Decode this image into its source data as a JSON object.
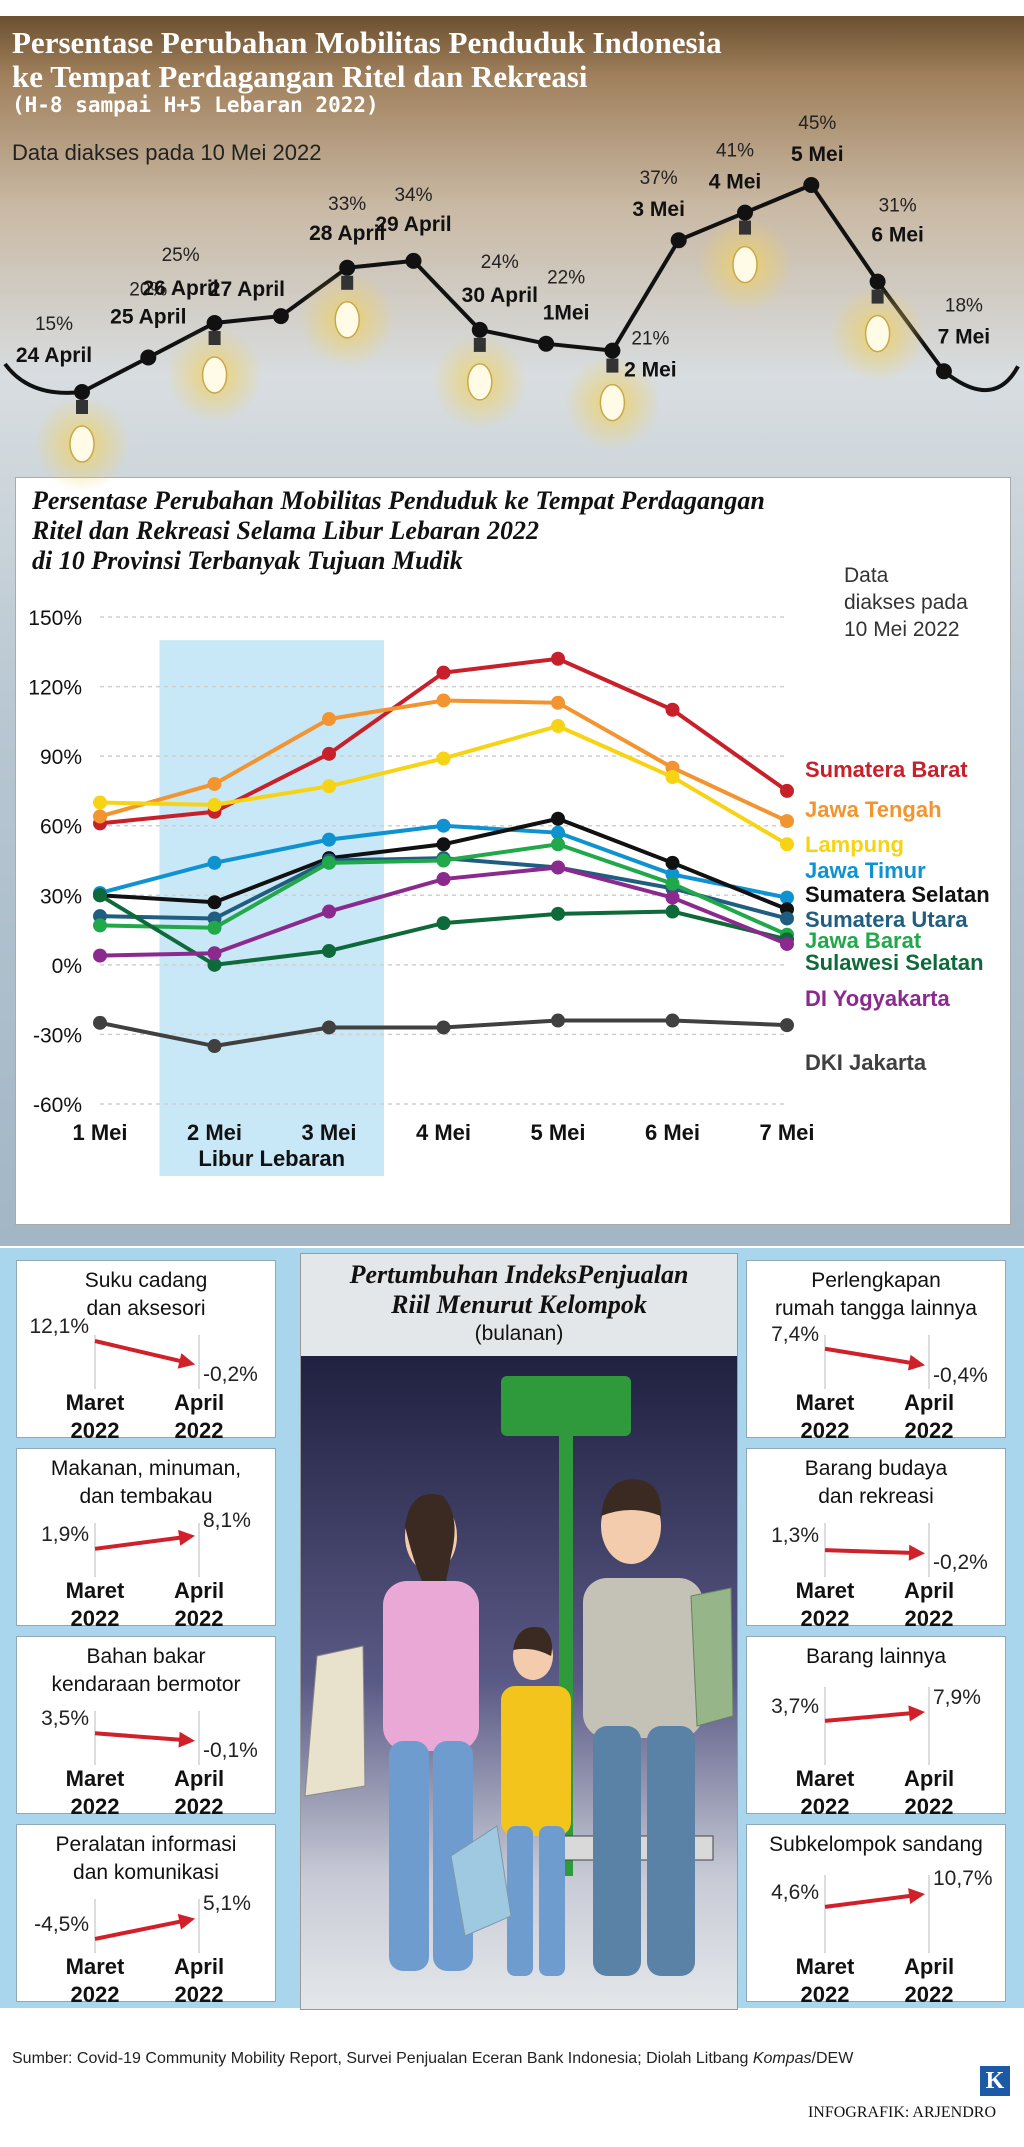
{
  "header": {
    "title_line1": "Persentase Perubahan Mobilitas Penduduk Indonesia",
    "title_line2": "ke Tempat Perdagangan Ritel dan Rekreasi",
    "subtitle": "(H-8 sampai H+5 Lebaran 2022)",
    "accessed": "Data diakses pada 10 Mei 2022"
  },
  "line_panel": {
    "title_line1": "Persentase Perubahan Mobilitas Penduduk ke Tempat Perdagangan",
    "title_line2": "Ritel dan Rekreasi Selama Libur Lebaran 2022",
    "title_line3": "di 10 Provinsi Terbanyak Tujuan Mudik",
    "note_line1": "Data",
    "note_line2": "diakses pada",
    "note_line3": "10 Mei 2022",
    "highlight_label": "Libur Lebaran"
  },
  "chart_data": [
    {
      "type": "line",
      "x": [
        "24 April",
        "25 April",
        "26 April",
        "27 April",
        "28 April",
        "29 April",
        "30 April",
        "1Mei",
        "2 Mei",
        "3 Mei",
        "4 Mei",
        "5 Mei",
        "6 Mei",
        "7 Mei"
      ],
      "values": [
        15,
        20,
        25,
        26,
        33,
        34,
        24,
        22,
        21,
        37,
        41,
        45,
        31,
        18
      ],
      "value_labels": [
        "15%",
        "20%",
        "25%",
        "",
        "33%",
        "34%",
        "24%",
        "22%",
        "21%",
        "37%",
        "41%",
        "45%",
        "31%",
        "18%"
      ],
      "labeled_dates": [
        "24 April",
        "25 April",
        "26 April",
        "27 April",
        "28 April",
        "29 April",
        "30 April",
        "1Mei",
        "2 Mei",
        "3 Mei",
        "4 Mei",
        "5 Mei",
        "6 Mei",
        "7 Mei"
      ],
      "bulb_color": "#f0d060"
    },
    {
      "type": "line",
      "categories": [
        "1 Mei",
        "2 Mei",
        "3 Mei",
        "4 Mei",
        "5 Mei",
        "6 Mei",
        "7 Mei"
      ],
      "ylim": [
        -60,
        150
      ],
      "yticks": [
        150,
        120,
        90,
        60,
        30,
        0,
        -30,
        -60
      ],
      "ytick_labels": [
        "150%",
        "120%",
        "90%",
        "60%",
        "30%",
        "0%",
        "-30%",
        "-60%"
      ],
      "highlight_range": [
        "2 Mei",
        "3 Mei"
      ],
      "series": [
        {
          "name": "Sumatera Barat",
          "color": "#c8202a",
          "values": [
            61,
            66,
            91,
            126,
            132,
            110,
            75
          ]
        },
        {
          "name": "Jawa Tengah",
          "color": "#f29430",
          "values": [
            64,
            78,
            106,
            114,
            113,
            85,
            62
          ]
        },
        {
          "name": "Lampung",
          "color": "#f7d315",
          "values": [
            70,
            69,
            77,
            89,
            103,
            81,
            52
          ]
        },
        {
          "name": "Jawa Timur",
          "color": "#0f92d0",
          "values": [
            31,
            44,
            54,
            60,
            57,
            39,
            29
          ]
        },
        {
          "name": "Sumatera Selatan",
          "color": "#111111",
          "values": [
            30,
            27,
            46,
            52,
            63,
            44,
            24
          ]
        },
        {
          "name": "Sumatera Utara",
          "color": "#1f5e80",
          "values": [
            21,
            20,
            45,
            46,
            42,
            33,
            20
          ]
        },
        {
          "name": "Jawa Barat",
          "color": "#20a84a",
          "values": [
            17,
            16,
            44,
            45,
            52,
            35,
            13
          ]
        },
        {
          "name": "Sulawesi Selatan",
          "color": "#0e6a3a",
          "values": [
            30,
            0,
            6,
            18,
            22,
            23,
            11
          ]
        },
        {
          "name": "DI Yogyakarta",
          "color": "#8a2a8e",
          "values": [
            4,
            5,
            23,
            37,
            42,
            29,
            9
          ]
        },
        {
          "name": "DKI Jakarta",
          "color": "#404040",
          "values": [
            -25,
            -35,
            -27,
            -27,
            -24,
            -24,
            -26
          ]
        }
      ]
    }
  ],
  "sales": {
    "title_line1": "Pertumbuhan IndeksPenjualan",
    "title_line2": "Riil Menurut Kelompok",
    "subtitle": "(bulanan)",
    "month_a": "Maret",
    "month_b": "April",
    "year": "2022",
    "arrow_color": "#d0202a",
    "groups": [
      {
        "title_line1": "Suku cadang",
        "title_line2": "dan aksesori",
        "maret": "12,1%",
        "april": "-0,2%",
        "v1": 12.1,
        "v2": -0.2
      },
      {
        "title_line1": "Makanan, minuman,",
        "title_line2": "dan tembakau",
        "maret": "1,9%",
        "april": "8,1%",
        "v1": 1.9,
        "v2": 8.1
      },
      {
        "title_line1": "Bahan bakar",
        "title_line2": "kendaraan bermotor",
        "maret": "3,5%",
        "april": "-0,1%",
        "v1": 3.5,
        "v2": -0.1
      },
      {
        "title_line1": "Peralatan informasi",
        "title_line2": "dan komunikasi",
        "maret": "-4,5%",
        "april": "5,1%",
        "v1": -4.5,
        "v2": 5.1
      },
      {
        "title_line1": "Perlengkapan",
        "title_line2": "rumah tangga lainnya",
        "maret": "7,4%",
        "april": "-0,4%",
        "v1": 7.4,
        "v2": -0.4
      },
      {
        "title_line1": "Barang budaya",
        "title_line2": "dan rekreasi",
        "maret": "1,3%",
        "april": "-0,2%",
        "v1": 1.3,
        "v2": -0.2
      },
      {
        "title_line1": "Barang lainnya",
        "title_line2": "",
        "maret": "3,7%",
        "april": "7,9%",
        "v1": 3.7,
        "v2": 7.9
      },
      {
        "title_line1": "Subkelompok sandang",
        "title_line2": "",
        "maret": "4,6%",
        "april": "10,7%",
        "v1": 4.6,
        "v2": 10.7
      }
    ]
  },
  "footer": {
    "source_prefix": "Sumber: Covid-19 Community Mobility Report, Survei Penjualan Eceran Bank Indonesia; Diolah Litbang ",
    "source_italic": "Kompas",
    "source_suffix": "/DEW",
    "credit": "INFOGRAFIK: ARJENDRO",
    "logo": "K"
  }
}
